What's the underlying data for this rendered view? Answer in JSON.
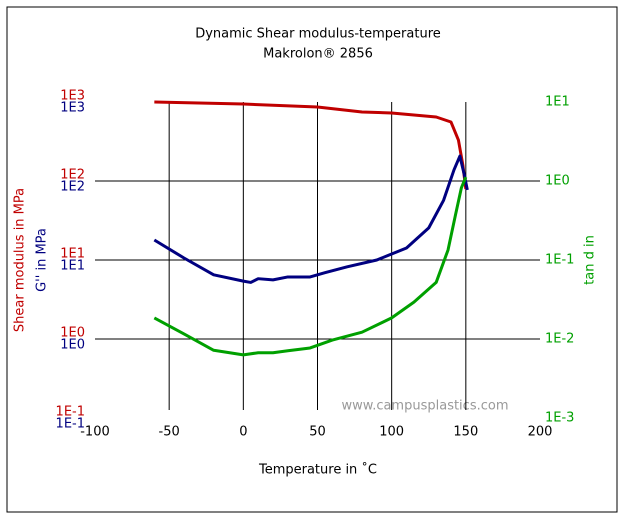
{
  "chart_data": {
    "type": "line",
    "title": [
      "Dynamic Shear modulus-temperature",
      "Makrolon® 2856"
    ],
    "xlabel": "Temperature in ˚C",
    "watermark": "www.campusplastics.com",
    "xlim": [
      -100,
      200
    ],
    "xticks": [
      -100,
      -50,
      0,
      50,
      100,
      150,
      200
    ],
    "grid": true,
    "y_axes": [
      {
        "label": "Shear modulus in MPa",
        "color": "#c00000",
        "side": "left",
        "log": true,
        "lim": [
          0.1,
          1000
        ],
        "ticks": [
          {
            "value": 0.1,
            "label": "1E-1"
          },
          {
            "value": 1,
            "label": "1E0"
          },
          {
            "value": 10,
            "label": "1E1"
          },
          {
            "value": 100,
            "label": "1E2"
          },
          {
            "value": 1000,
            "label": "1E3"
          }
        ]
      },
      {
        "label": "G'' in MPa",
        "color": "#000080",
        "side": "left",
        "log": true,
        "lim": [
          0.1,
          1000
        ],
        "ticks": [
          {
            "value": 0.1,
            "label": "1E-1"
          },
          {
            "value": 1,
            "label": "1E0"
          },
          {
            "value": 10,
            "label": "1E1"
          },
          {
            "value": 100,
            "label": "1E2"
          },
          {
            "value": 1000,
            "label": "1E3"
          }
        ]
      },
      {
        "label": "tan d in",
        "color": "#00a000",
        "side": "right",
        "log": true,
        "lim": [
          0.001,
          10
        ],
        "ticks": [
          {
            "value": 0.001,
            "label": "1E-3"
          },
          {
            "value": 0.01,
            "label": "1E-2"
          },
          {
            "value": 0.1,
            "label": "1E-1"
          },
          {
            "value": 1,
            "label": "1E0"
          },
          {
            "value": 10,
            "label": "1E1"
          }
        ]
      }
    ],
    "series": [
      {
        "color": "#c00000",
        "axis": 0,
        "x": [
          -60,
          0,
          50,
          80,
          100,
          130,
          140,
          145,
          148,
          150
        ],
        "values": [
          1000,
          943,
          865,
          747,
          726,
          646,
          558,
          330,
          159,
          79
        ]
      },
      {
        "color": "#000080",
        "axis": 1,
        "x": [
          -60,
          -40,
          -20,
          0,
          5,
          10,
          20,
          30,
          45,
          55,
          70,
          90,
          110,
          125,
          135,
          142,
          146,
          149,
          151
        ],
        "values": [
          17.9,
          10.6,
          6.5,
          5.4,
          5.2,
          5.8,
          5.6,
          6.1,
          6.1,
          6.9,
          8.2,
          10,
          14.2,
          25.5,
          57,
          138,
          207,
          119,
          77
        ]
      },
      {
        "color": "#00a000",
        "axis": 2,
        "x": [
          -60,
          -40,
          -20,
          0,
          10,
          20,
          30,
          45,
          60,
          80,
          100,
          115,
          130,
          138,
          143,
          147,
          150
        ],
        "values": [
          0.0185,
          0.0116,
          0.0072,
          0.0063,
          0.0067,
          0.0067,
          0.0071,
          0.0077,
          0.0097,
          0.0122,
          0.0185,
          0.0293,
          0.052,
          0.134,
          0.37,
          0.82,
          1.12
        ]
      }
    ]
  }
}
